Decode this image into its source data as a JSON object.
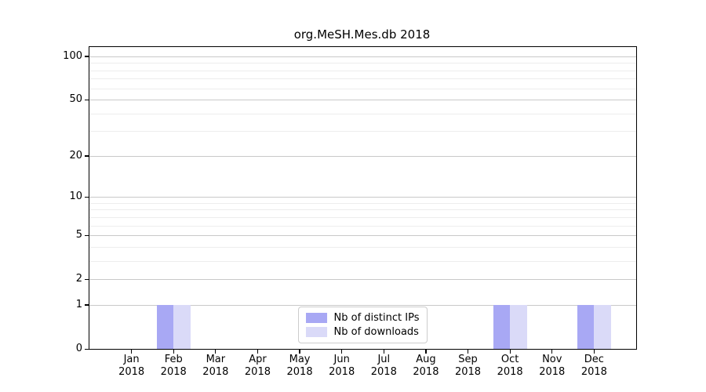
{
  "chart_data": {
    "type": "bar",
    "title": "org.MeSH.Mes.db 2018",
    "categories": [
      "Jan",
      "Feb",
      "Mar",
      "Apr",
      "May",
      "Jun",
      "Jul",
      "Aug",
      "Sep",
      "Oct",
      "Nov",
      "Dec"
    ],
    "x_sublabel": "2018",
    "series": [
      {
        "name": "Nb of distinct IPs",
        "color": "#a8a8f4",
        "values": [
          0,
          1,
          0,
          0,
          0,
          0,
          0,
          0,
          0,
          1,
          0,
          1
        ]
      },
      {
        "name": "Nb of downloads",
        "color": "#dadaf8",
        "values": [
          0,
          1,
          0,
          0,
          0,
          0,
          0,
          0,
          0,
          1,
          0,
          1
        ]
      }
    ],
    "y_ticks": [
      0,
      1,
      2,
      5,
      10,
      20,
      50,
      100
    ],
    "minor_gridlines": [
      3,
      4,
      6,
      7,
      8,
      9,
      30,
      40,
      60,
      70,
      80,
      90
    ],
    "scale": "log1p",
    "ylim": [
      0,
      116
    ],
    "grid": true,
    "legend_position": "lower center",
    "xlabel": "",
    "ylabel": ""
  },
  "colors": {
    "major_grid": "#c9c9c9",
    "minor_grid": "#ededed",
    "axis": "#000000",
    "legend_border": "#cccccc",
    "background": "#ffffff"
  }
}
